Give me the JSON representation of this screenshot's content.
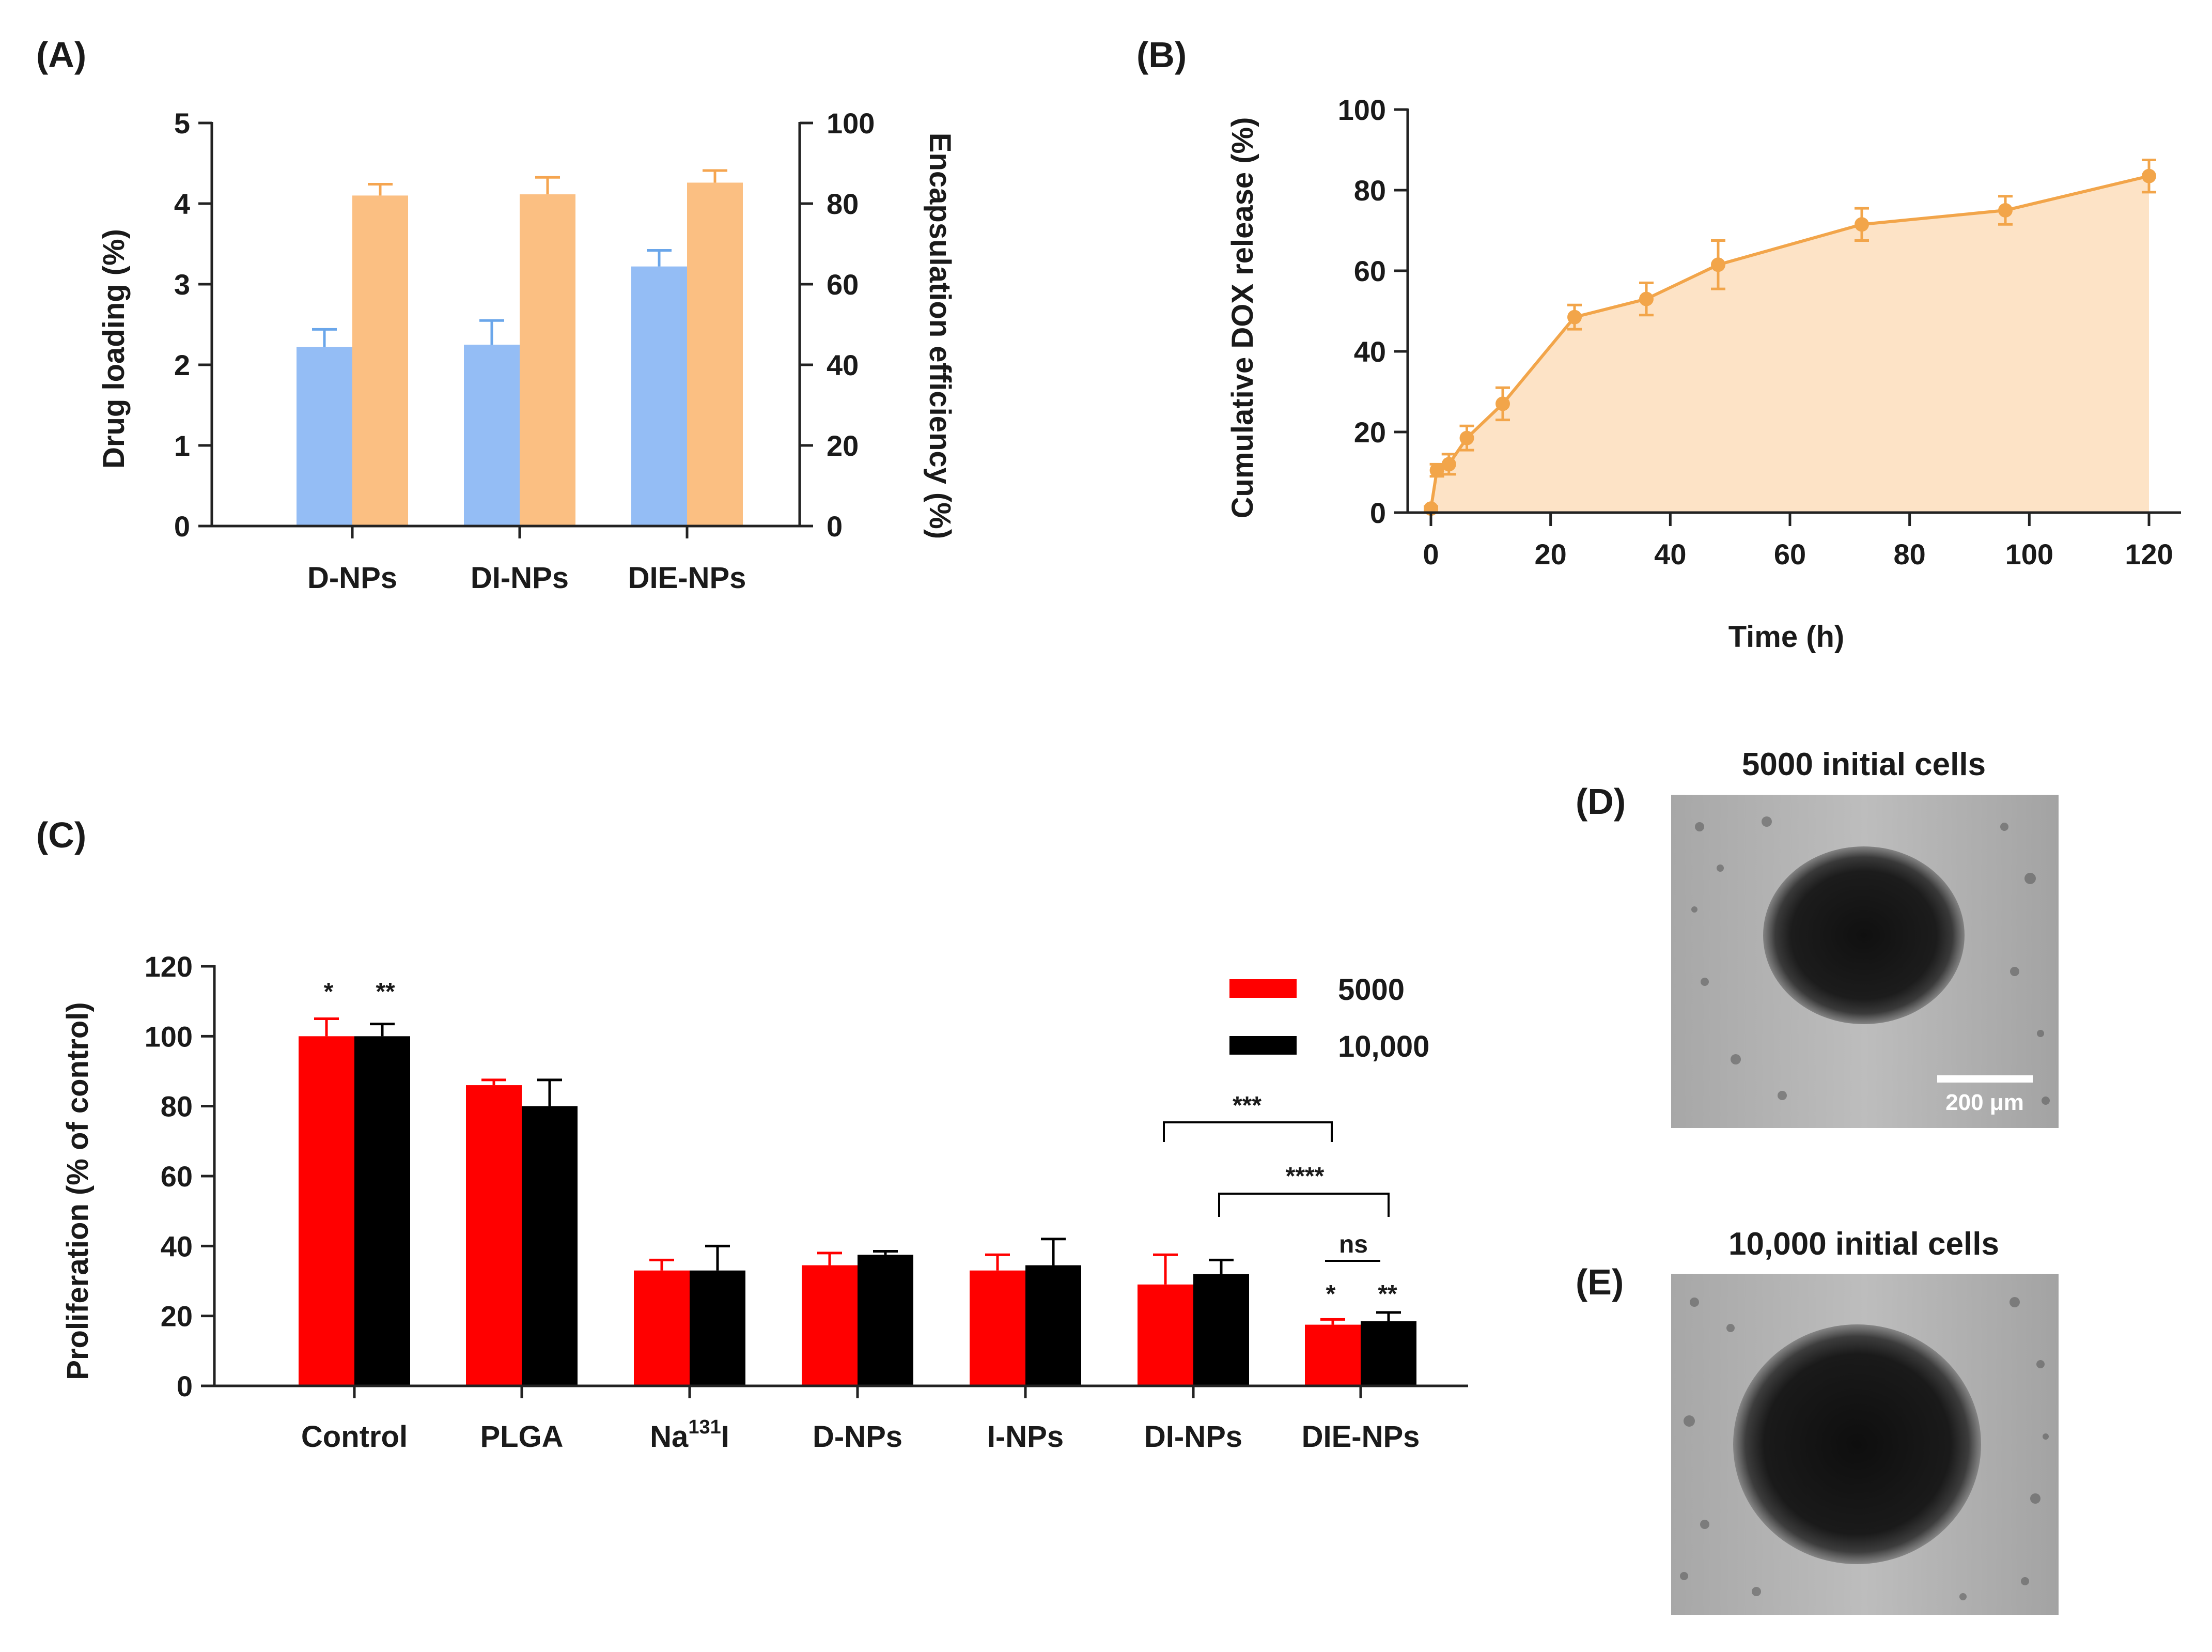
{
  "panels": {
    "a": "(A)",
    "b": "(B)",
    "c": "(C)",
    "d": "(D)",
    "e": "(E)"
  },
  "colors": {
    "drug_loading": "#94bdf5",
    "drug_loading_err": "#6aa6ea",
    "encapsulation": "#fbbf82",
    "encapsulation_err": "#f5a550",
    "release_line": "#f2a54a",
    "release_fill": "#fde3c6",
    "c_5000": "#ff0000",
    "c_10000": "#000000"
  },
  "chart_data": [
    {
      "id": "A",
      "type": "bar",
      "categories": [
        "D-NPs",
        "DI-NPs",
        "DIE-NPs"
      ],
      "series": [
        {
          "name": "Drug loading (%)",
          "axis": "left",
          "values": [
            2.22,
            2.25,
            3.22
          ],
          "errors": [
            0.22,
            0.3,
            0.2
          ]
        },
        {
          "name": "Encapsulation efficiency (%)",
          "axis": "right",
          "values": [
            82,
            82.3,
            85.2
          ],
          "errors": [
            2.8,
            4.2,
            3.0
          ]
        }
      ],
      "ylabel": "Drug loading (%)",
      "ylabel_right": "Encapsulation efficiency (%)",
      "ylim": [
        0,
        5
      ],
      "ylim_right": [
        0,
        100
      ],
      "yticks": [
        "0",
        "1",
        "2",
        "3",
        "4",
        "5"
      ],
      "yticks_right": [
        "0",
        "20",
        "40",
        "60",
        "80",
        "100"
      ]
    },
    {
      "id": "B",
      "type": "area",
      "x": [
        0,
        1,
        3,
        6,
        12,
        24,
        36,
        48,
        72,
        96,
        120
      ],
      "y": [
        1,
        10.5,
        12,
        18.5,
        27,
        48.5,
        53,
        61.5,
        71.5,
        75,
        83.5
      ],
      "errors": [
        0.5,
        1.5,
        2.5,
        3,
        4,
        3,
        4,
        6,
        4,
        3.5,
        4
      ],
      "xlabel": "Time (h)",
      "ylabel": "Cumulative DOX release (%)",
      "xlim": [
        0,
        120
      ],
      "ylim": [
        0,
        100
      ],
      "xticks": [
        "0",
        "20",
        "40",
        "60",
        "80",
        "100",
        "120"
      ],
      "yticks": [
        "0",
        "20",
        "40",
        "60",
        "80",
        "100"
      ]
    },
    {
      "id": "C",
      "type": "bar",
      "categories": [
        "Control",
        "PLGA",
        "Na131I",
        "D-NPs",
        "I-NPs",
        "DI-NPs",
        "DIE-NPs"
      ],
      "category_base": "Na",
      "category_sup": "131",
      "category_tail": "I",
      "series": [
        {
          "name": "5000",
          "values": [
            100,
            86,
            33,
            34.5,
            33,
            29,
            17.5
          ],
          "errors": [
            5,
            1.5,
            3,
            3.5,
            4.5,
            8.5,
            1.5
          ]
        },
        {
          "name": "10,000",
          "values": [
            100,
            80,
            33,
            37.5,
            34.5,
            32,
            18.5
          ],
          "errors": [
            3.5,
            7.5,
            7,
            1,
            7.5,
            4,
            2.5
          ]
        }
      ],
      "ylabel": "Proliferation (% of control)",
      "ylim": [
        0,
        120
      ],
      "yticks": [
        "0",
        "20",
        "40",
        "60",
        "80",
        "100",
        "120"
      ],
      "legend": [
        "5000",
        "10,000"
      ],
      "annotations": {
        "control_5000": "*",
        "control_10000": "**",
        "dienps_5000": "*",
        "dienps_10000": "**",
        "bracket_1": "***",
        "bracket_2": "****",
        "bracket_ns": "ns"
      }
    }
  ],
  "images": {
    "d_title": "5000 initial cells",
    "e_title": "10,000 initial cells",
    "scale_bar": "200 μm"
  }
}
